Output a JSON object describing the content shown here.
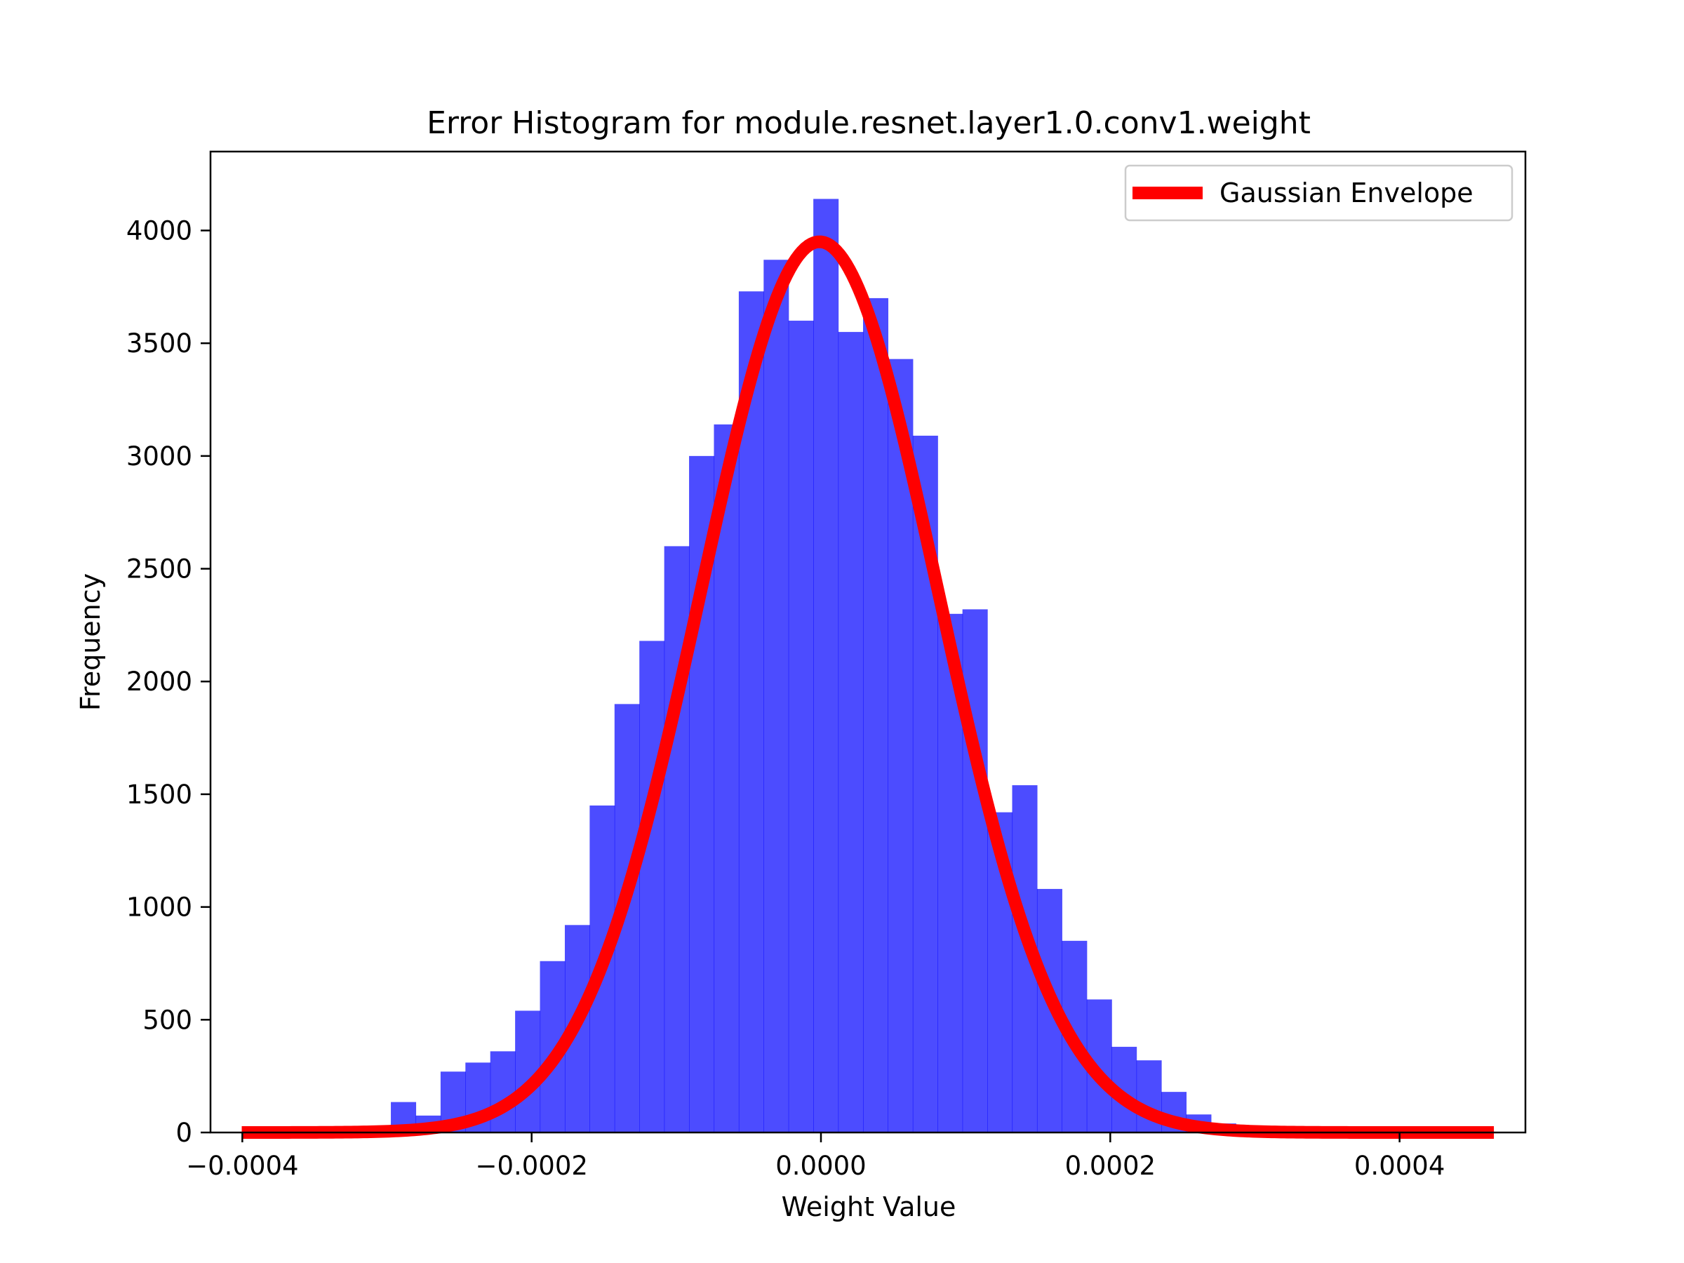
{
  "chart_data": {
    "type": "bar",
    "title": "Error Histogram for module.resnet.layer1.0.conv1.weight",
    "xlabel": "Weight Value",
    "ylabel": "Frequency",
    "xlim": [
      -0.000422,
      0.000487
    ],
    "ylim": [
      0,
      4350
    ],
    "x_ticks": [
      -0.0004,
      -0.0002,
      0.0,
      0.0002,
      0.0004
    ],
    "x_tick_labels": [
      "−0.0004",
      "−0.0002",
      "0.0000",
      "0.0002",
      "0.0004"
    ],
    "y_ticks": [
      0,
      500,
      1000,
      1500,
      2000,
      2500,
      3000,
      3500,
      4000
    ],
    "y_tick_labels": [
      "0",
      "500",
      "1000",
      "1500",
      "2000",
      "2500",
      "3000",
      "3500",
      "4000"
    ],
    "grid": false,
    "histogram": {
      "name": "",
      "color": "#0000ff",
      "alpha": 0.7,
      "bin_width": 1.718e-05,
      "bin_edges": [
        -0.0004004,
        -0.00038322,
        -0.00036604,
        -0.00034886,
        -0.00033168,
        -0.0003145,
        -0.00029732,
        -0.00028014,
        -0.00026296,
        -0.00024578,
        -0.0002286,
        -0.00021142,
        -0.00019424,
        -0.00017706,
        -0.00015988,
        -0.0001427,
        -0.00012552,
        -0.00010834,
        -9.116e-05,
        -7.398e-05,
        -5.68e-05,
        -3.962e-05,
        -2.244e-05,
        -5.26e-06,
        1.192e-05,
        2.91e-05,
        4.628e-05,
        6.346e-05,
        8.064e-05,
        9.782e-05,
        0.000115,
        0.00013218,
        0.00014936,
        0.00016654,
        0.00018372,
        0.0002009,
        0.00021808,
        0.00023526,
        0.00025244,
        0.00026962,
        0.0002868,
        0.00030398,
        0.00032116,
        0.00033834,
        0.00035552,
        0.0003727,
        0.00038988,
        0.00040706,
        0.00042424,
        0.00044142,
        0.0004586
      ],
      "counts": [
        0,
        2,
        1,
        3,
        8,
        20,
        135,
        75,
        270,
        310,
        360,
        540,
        760,
        920,
        1450,
        1900,
        2180,
        2600,
        3000,
        3140,
        3730,
        3870,
        3600,
        4140,
        3550,
        3700,
        3430,
        3090,
        2300,
        2320,
        1420,
        1540,
        1080,
        850,
        590,
        380,
        320,
        180,
        80,
        40,
        15,
        5,
        4,
        2,
        1,
        1,
        0,
        0,
        0,
        0
      ]
    },
    "series": [
      {
        "name": "Gaussian Envelope",
        "type": "line",
        "color": "#ff0000",
        "mean": -1e-06,
        "std": 8.22e-05,
        "peak": 3950,
        "x_range": [
          -0.0004004,
          0.0004652
        ]
      }
    ],
    "legend": {
      "placement": "top-right",
      "entries": [
        "Gaussian Envelope"
      ]
    }
  }
}
